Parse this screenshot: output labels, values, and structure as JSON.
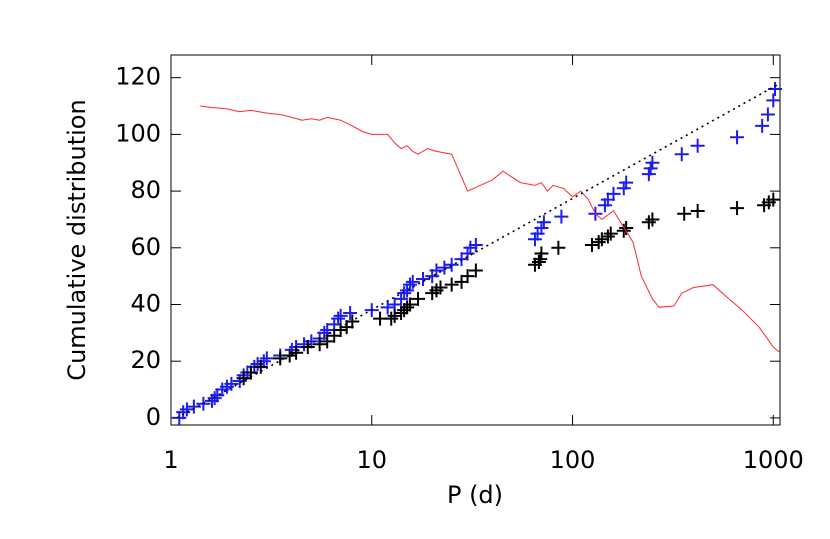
{
  "chart_data": {
    "type": "scatter",
    "x_label": "P (d)",
    "y_label": "Cumulative distribution",
    "xscale": "log",
    "xlim": [
      1,
      1080
    ],
    "ylim": [
      -2.5,
      128
    ],
    "xticks": [
      1,
      10,
      100,
      1000
    ],
    "yticks": [
      0,
      20,
      40,
      60,
      80,
      100,
      120
    ],
    "series": [
      {
        "style": "plus",
        "color": "#1c1cf0",
        "x": [
          1.1,
          1.15,
          1.2,
          1.3,
          1.45,
          1.6,
          1.65,
          1.7,
          1.8,
          1.9,
          2.0,
          2.2,
          2.3,
          2.4,
          2.6,
          2.7,
          2.9,
          3.0,
          3.5,
          4.0,
          4.2,
          4.6,
          5.0,
          5.5,
          5.8,
          6.0,
          6.5,
          6.8,
          7.0,
          7.8,
          10,
          12,
          13,
          14,
          14.5,
          15,
          15.5,
          16,
          18,
          20,
          21,
          23,
          25,
          28,
          30,
          31,
          33,
          65,
          67,
          70,
          72,
          88,
          130,
          145,
          150,
          160,
          180,
          185,
          240,
          245,
          250,
          350,
          420,
          660,
          880,
          940,
          1000,
          1020
        ],
        "values": [
          0,
          2,
          3,
          4,
          5,
          6,
          7,
          8,
          10,
          11,
          12,
          13,
          15,
          16,
          18,
          19,
          20,
          21,
          22,
          24,
          25,
          26,
          27,
          28,
          30,
          31,
          33,
          35,
          36,
          37,
          38,
          39,
          40,
          42,
          44,
          45,
          47,
          48,
          49,
          50,
          52,
          53,
          54,
          56,
          58,
          60,
          61,
          63,
          65,
          67,
          69,
          71,
          72,
          75,
          77,
          79,
          81,
          83,
          86,
          88,
          90,
          93,
          96,
          99,
          103,
          107,
          112,
          116
        ]
      },
      {
        "style": "plus",
        "color": "#000000",
        "x": [
          2.3,
          2.5,
          2.8,
          3.5,
          3.9,
          4.2,
          4.8,
          5.5,
          6,
          6.5,
          7,
          7.5,
          8,
          11,
          12.5,
          13,
          14,
          14.5,
          15,
          15.5,
          17,
          20,
          21,
          22,
          25,
          28,
          30,
          33,
          65,
          68,
          69,
          70,
          85,
          125,
          135,
          140,
          150,
          155,
          180,
          185,
          240,
          250,
          360,
          420,
          660,
          900,
          950,
          1000
        ],
        "values": [
          14,
          16,
          18,
          21,
          22,
          23,
          25,
          26,
          27,
          29,
          31,
          32,
          34,
          35,
          35,
          36,
          37,
          38,
          39,
          40,
          42,
          44,
          45,
          46,
          47,
          48,
          50,
          52,
          54,
          55,
          56,
          58,
          60,
          61,
          62,
          63,
          64,
          65,
          66,
          67,
          69,
          70,
          72,
          73,
          74,
          75,
          76,
          77
        ]
      },
      {
        "style": "line",
        "color": "#ff2a2a",
        "x": [
          1.4,
          1.6,
          1.9,
          2.2,
          2.5,
          3,
          3.5,
          4,
          4.5,
          5,
          5.5,
          6,
          7,
          8,
          9,
          10,
          12,
          13,
          14,
          15,
          16,
          17,
          19,
          21,
          25,
          28,
          30,
          40,
          45,
          55,
          65,
          70,
          75,
          80,
          90,
          100,
          110,
          120,
          130,
          140,
          160,
          170,
          200,
          220,
          250,
          270,
          320,
          350,
          400,
          500,
          600,
          700,
          850,
          1000,
          1080
        ],
        "values": [
          110,
          109.5,
          109,
          108,
          108.5,
          107.5,
          107,
          106,
          105,
          105.5,
          105,
          106,
          105,
          103,
          101,
          100,
          100,
          97,
          95,
          96,
          94,
          93,
          95,
          94,
          93,
          85,
          80,
          84,
          87,
          83,
          82,
          83,
          80,
          82,
          81,
          78,
          80,
          77,
          72,
          70,
          73,
          70,
          62,
          50,
          42,
          39,
          39.5,
          44,
          46,
          47,
          42,
          38,
          32,
          25,
          23
        ]
      },
      {
        "style": "dotted",
        "color": "#000000",
        "x": [
          1.07,
          1080
        ],
        "values": [
          0,
          118
        ]
      }
    ]
  }
}
